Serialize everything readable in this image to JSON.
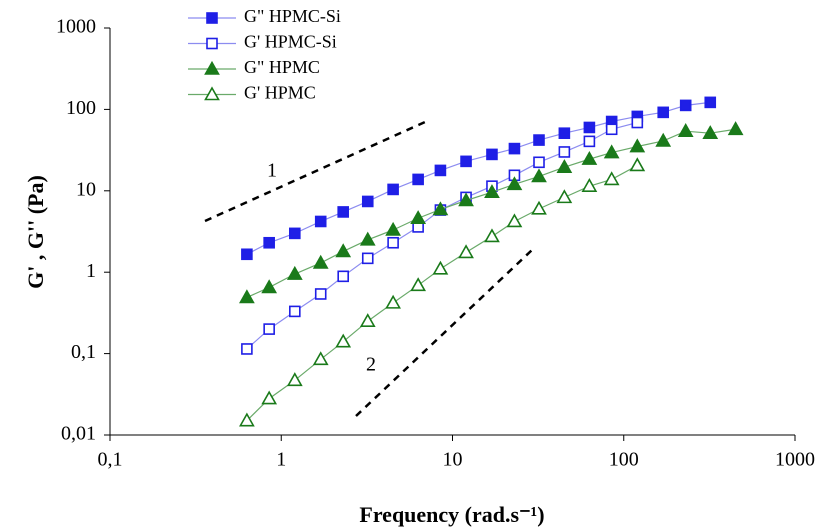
{
  "chart_data": {
    "type": "scatter",
    "log_x": true,
    "log_y": true,
    "grid": false,
    "legend_position": "upper-left",
    "xlabel": "Frequency (rad.s⁻¹)",
    "ylabel": "G' , G'' (Pa)",
    "xlim": [
      0.1,
      1000
    ],
    "ylim": [
      0.01,
      1000
    ],
    "xticks": [
      {
        "value": 0.1,
        "label": "0,1"
      },
      1,
      10,
      100,
      1000
    ],
    "yticks": [
      {
        "value": 0.01,
        "label": "0,01"
      },
      {
        "value": 0.1,
        "label": "0,1"
      },
      1,
      10,
      100,
      1000
    ],
    "annotations": [
      "1",
      "2"
    ],
    "x": [
      0.63,
      0.85,
      1.2,
      1.7,
      2.3,
      3.2,
      4.5,
      6.3,
      8.5,
      12,
      17,
      23,
      32,
      45,
      63,
      85,
      120,
      170,
      230,
      320,
      450
    ],
    "series": [
      {
        "name": "G\" HPMC-Si",
        "color": "#1f1fe6",
        "line_color": "#8c8cf0",
        "marker": "square",
        "filled": true,
        "values": [
          1.66,
          2.3,
          3.0,
          4.2,
          5.5,
          7.4,
          10.4,
          13.8,
          17.8,
          23,
          28,
          33,
          42,
          51,
          60,
          71,
          82,
          92,
          112,
          122,
          null
        ]
      },
      {
        "name": "G' HPMC-Si",
        "color": "#1f1fe6",
        "line_color": "#8c8cf0",
        "marker": "square",
        "filled": false,
        "values": [
          0.114,
          0.2,
          0.33,
          0.54,
          0.89,
          1.48,
          2.3,
          3.6,
          5.8,
          8.3,
          11.4,
          15.5,
          22.4,
          30,
          40.5,
          57,
          69,
          null,
          null,
          null,
          null
        ]
      },
      {
        "name": "G\" HPMC",
        "color": "#1a7a1a",
        "line_color": "#6aaa6a",
        "marker": "triangle",
        "filled": true,
        "values": [
          0.49,
          0.65,
          0.95,
          1.3,
          1.8,
          2.5,
          3.3,
          4.6,
          5.9,
          7.6,
          9.6,
          12,
          15,
          19.5,
          24.5,
          29.5,
          35,
          41,
          54,
          51,
          57
        ]
      },
      {
        "name": "G'  HPMC",
        "color": "#1a7a1a",
        "line_color": "#6aaa6a",
        "marker": "triangle",
        "filled": false,
        "values": [
          0.015,
          0.028,
          0.047,
          0.085,
          0.14,
          0.25,
          0.42,
          0.69,
          1.1,
          1.75,
          2.75,
          4.2,
          6,
          8.3,
          11.4,
          13.8,
          20.5,
          null,
          null,
          null,
          null
        ]
      }
    ]
  }
}
